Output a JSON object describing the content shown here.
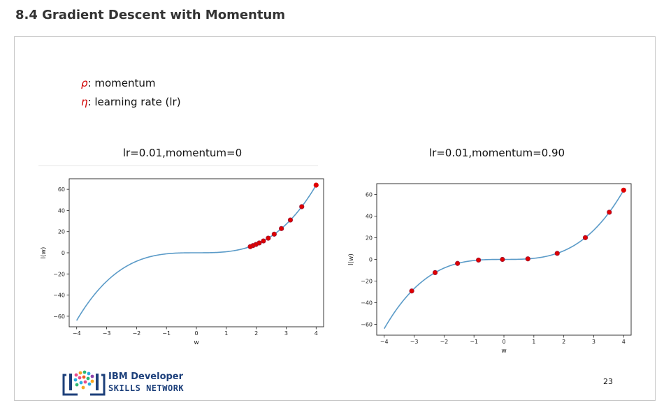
{
  "page": {
    "title": "8.4 Gradient Descent with Momentum",
    "page_number": "23"
  },
  "legend": {
    "rho_symbol": "ρ",
    "rho_text": ": momentum",
    "eta_symbol": "η",
    "eta_text": ": learning rate (lr)"
  },
  "logo": {
    "line1": "IBM Developer",
    "line2": "SKILLS NETWORK"
  },
  "colors": {
    "curve": "#5b9bc8",
    "point": "#e00000",
    "point_edge": "#9b1a3a",
    "symbol": "#d10000"
  },
  "chart_data": [
    {
      "type": "line",
      "title": "lr=0.01,momentum=0",
      "xlabel": "w",
      "ylabel": "l(w)",
      "xlim": [
        -4.25,
        4.25
      ],
      "ylim": [
        -70,
        70
      ],
      "xticks": [
        -4,
        -3,
        -2,
        -1,
        0,
        1,
        2,
        3,
        4
      ],
      "yticks": [
        -60,
        -40,
        -20,
        0,
        20,
        40,
        60
      ],
      "xticklabels": [
        "−4",
        "−3",
        "−2",
        "−1",
        "0",
        "1",
        "2",
        "3",
        "4"
      ],
      "yticklabels": [
        "−60",
        "−40",
        "−20",
        "0",
        "20",
        "40",
        "60"
      ],
      "series": [
        {
          "kind": "curve",
          "function": "w^3",
          "x_range": [
            -4,
            4
          ]
        },
        {
          "kind": "scatter",
          "x": [
            4.0,
            3.52,
            3.14,
            2.84,
            2.6,
            2.4,
            2.24,
            2.1,
            1.99,
            1.89,
            1.8
          ],
          "y": [
            64.0,
            43.6,
            31.0,
            22.9,
            17.6,
            13.8,
            11.2,
            9.3,
            7.9,
            6.8,
            5.8
          ]
        }
      ]
    },
    {
      "type": "line",
      "title": "lr=0.01,momentum=0.90",
      "xlabel": "w",
      "ylabel": "l(w)",
      "xlim": [
        -4.25,
        4.25
      ],
      "ylim": [
        -70,
        70
      ],
      "xticks": [
        -4,
        -3,
        -2,
        -1,
        0,
        1,
        2,
        3,
        4
      ],
      "yticks": [
        -60,
        -40,
        -20,
        0,
        20,
        40,
        60
      ],
      "xticklabels": [
        "−4",
        "−3",
        "−2",
        "−1",
        "0",
        "1",
        "2",
        "3",
        "4"
      ],
      "yticklabels": [
        "−60",
        "−40",
        "−20",
        "0",
        "20",
        "40",
        "60"
      ],
      "series": [
        {
          "kind": "curve",
          "function": "w^3",
          "x_range": [
            -4,
            4
          ]
        },
        {
          "kind": "scatter",
          "x": [
            4.0,
            3.52,
            2.72,
            1.78,
            0.8,
            -0.05,
            -0.85,
            -1.55,
            -2.3,
            -3.08
          ],
          "y": [
            64.0,
            43.6,
            20.1,
            5.6,
            0.5,
            0.0,
            -0.6,
            -3.7,
            -12.2,
            -29.2
          ]
        }
      ]
    }
  ]
}
